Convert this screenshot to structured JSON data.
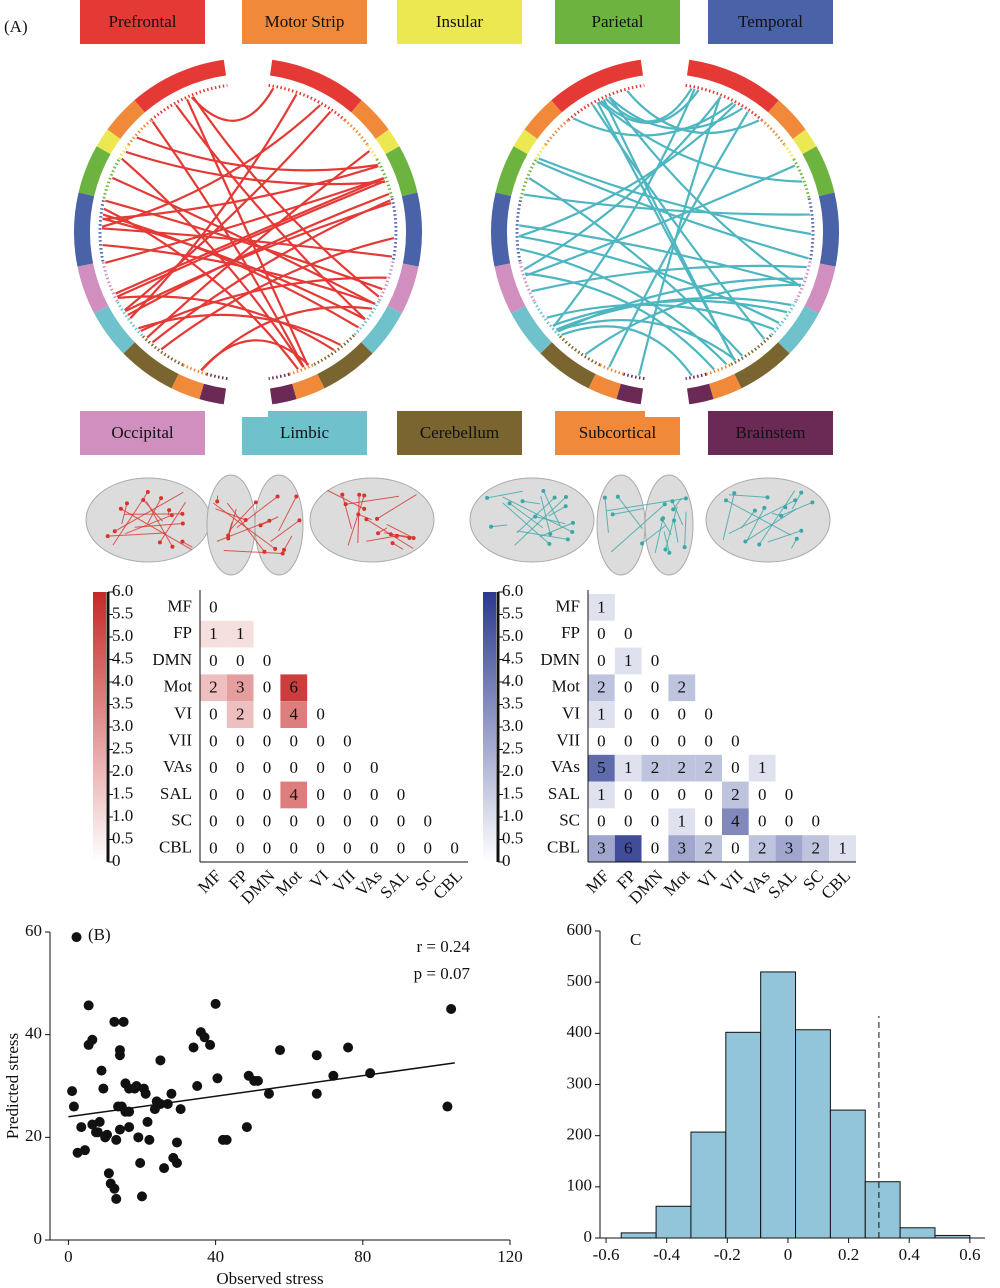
{
  "panel_a": {
    "label": "(A)",
    "regions": [
      {
        "name": "Prefrontal",
        "color": "#e53935"
      },
      {
        "name": "Motor Strip",
        "color": "#f08a3a"
      },
      {
        "name": "Insular",
        "color": "#ece852"
      },
      {
        "name": "Parietal",
        "color": "#6db33f"
      },
      {
        "name": "Temporal",
        "color": "#4a62a8"
      },
      {
        "name": "Occipital",
        "color": "#d08fbf"
      },
      {
        "name": "Limbic",
        "color": "#6fc2cc"
      },
      {
        "name": "Cerebellum",
        "color": "#7a6530"
      },
      {
        "name": "Subcortical",
        "color": "#f08a3a"
      },
      {
        "name": "Brainstem",
        "color": "#6b2a56"
      }
    ]
  },
  "chart_data": [
    {
      "type": "heatmap",
      "categories": [
        "MF",
        "FP",
        "DMN",
        "Mot",
        "VI",
        "VII",
        "VAs",
        "SAL",
        "SC",
        "CBL"
      ],
      "values": [
        [
          0,
          null,
          null,
          null,
          null,
          null,
          null,
          null,
          null,
          null
        ],
        [
          1,
          1,
          null,
          null,
          null,
          null,
          null,
          null,
          null,
          null
        ],
        [
          0,
          0,
          0,
          null,
          null,
          null,
          null,
          null,
          null,
          null
        ],
        [
          2,
          3,
          0,
          6,
          null,
          null,
          null,
          null,
          null,
          null
        ],
        [
          0,
          2,
          0,
          4,
          0,
          null,
          null,
          null,
          null,
          null
        ],
        [
          0,
          0,
          0,
          0,
          0,
          0,
          null,
          null,
          null,
          null
        ],
        [
          0,
          0,
          0,
          0,
          0,
          0,
          0,
          null,
          null,
          null
        ],
        [
          0,
          0,
          0,
          4,
          0,
          0,
          0,
          0,
          null,
          null
        ],
        [
          0,
          0,
          0,
          0,
          0,
          0,
          0,
          0,
          0,
          null
        ],
        [
          0,
          0,
          0,
          0,
          0,
          0,
          0,
          0,
          0,
          0
        ]
      ],
      "color": "#c62828",
      "zlim": [
        0,
        6
      ],
      "zticks": [
        0,
        0.5,
        {
          "value": 1,
          "label": "1.0"
        },
        1.5,
        {
          "value": 2,
          "label": "2.0"
        },
        2.5,
        {
          "value": 3,
          "label": "3.0"
        },
        3.5,
        {
          "value": 4,
          "label": "4.0"
        },
        4.5,
        {
          "value": 5,
          "label": "5.0"
        },
        5.5,
        {
          "value": 6,
          "label": "6.0"
        }
      ]
    },
    {
      "type": "heatmap",
      "categories": [
        "MF",
        "FP",
        "DMN",
        "Mot",
        "VI",
        "VII",
        "VAs",
        "SAL",
        "SC",
        "CBL"
      ],
      "values": [
        [
          1,
          null,
          null,
          null,
          null,
          null,
          null,
          null,
          null,
          null
        ],
        [
          0,
          0,
          null,
          null,
          null,
          null,
          null,
          null,
          null,
          null
        ],
        [
          0,
          1,
          0,
          null,
          null,
          null,
          null,
          null,
          null,
          null
        ],
        [
          2,
          0,
          0,
          2,
          null,
          null,
          null,
          null,
          null,
          null
        ],
        [
          1,
          0,
          0,
          0,
          0,
          null,
          null,
          null,
          null,
          null
        ],
        [
          0,
          0,
          0,
          0,
          0,
          0,
          null,
          null,
          null,
          null
        ],
        [
          5,
          1,
          2,
          2,
          2,
          0,
          1,
          null,
          null,
          null
        ],
        [
          1,
          0,
          0,
          0,
          0,
          2,
          0,
          0,
          null,
          null
        ],
        [
          0,
          0,
          0,
          1,
          0,
          4,
          0,
          0,
          0,
          null
        ],
        [
          3,
          6,
          0,
          3,
          2,
          0,
          2,
          3,
          2,
          1
        ]
      ],
      "color": "#2b3990",
      "zlim": [
        0,
        6
      ],
      "zticks": [
        0,
        0.5,
        {
          "value": 1,
          "label": "1.0"
        },
        1.5,
        {
          "value": 2,
          "label": "2.0"
        },
        2.5,
        {
          "value": 3,
          "label": "3.0"
        },
        3.5,
        {
          "value": 4,
          "label": "4.0"
        },
        4.5,
        {
          "value": 5,
          "label": "5.0"
        },
        5.5,
        {
          "value": 6,
          "label": "6.0"
        }
      ]
    },
    {
      "type": "scatter",
      "label": "(B)",
      "x_label": "Observed stress",
      "y_label": "Predicted stress",
      "x": [
        2.2,
        1,
        1.5,
        2.5,
        3.5,
        5.5,
        5.5,
        6.5,
        4.5,
        6.5,
        7.5,
        8,
        8.5,
        9,
        9.5,
        10,
        10.5,
        11,
        11.5,
        12.5,
        13,
        12.5,
        15,
        13.5,
        13,
        14,
        14,
        14,
        14.5,
        15.5,
        16.5,
        15.5,
        16.5,
        16.5,
        18,
        18.5,
        19,
        19.5,
        20,
        20.5,
        21,
        22,
        21.5,
        23.5,
        24,
        25,
        25,
        26,
        27,
        28,
        28.5,
        29.5,
        29.5,
        30.5,
        34,
        35,
        36,
        37,
        38.5,
        40,
        40.5,
        42,
        43,
        48.5,
        49,
        50.5,
        51.5,
        54.5,
        57.5,
        67.5,
        67.5,
        72,
        76,
        82,
        103,
        104
      ],
      "y": [
        59,
        29,
        26,
        17,
        22,
        38,
        45.7,
        39,
        17.5,
        22.5,
        21,
        21,
        23,
        33,
        29.5,
        20,
        20.5,
        13,
        11,
        10,
        8,
        42.5,
        42.5,
        26,
        19.5,
        21.5,
        36,
        37,
        26,
        30.5,
        29.5,
        25,
        25,
        22,
        29.5,
        30,
        20,
        15,
        8.5,
        29.5,
        28.5,
        19.5,
        23,
        25.5,
        27,
        26.5,
        35,
        14,
        26.5,
        28.5,
        16,
        19,
        15,
        25.5,
        37.5,
        30,
        40.5,
        39.5,
        38,
        46,
        31.5,
        19.5,
        19.5,
        22,
        32,
        31,
        31,
        28.5,
        37,
        36,
        28.5,
        32,
        37.5,
        32.5,
        26,
        45
      ],
      "color": "#111111",
      "fit": {
        "x": [
          0,
          105
        ],
        "y": [
          24,
          34.5
        ]
      },
      "annotations": [
        "r = 0.24",
        "p = 0.07"
      ],
      "xlim": [
        -5,
        120
      ],
      "ylim": [
        0,
        60
      ],
      "xticks": [
        0,
        40,
        80,
        120
      ],
      "yticks": [
        0,
        20,
        40,
        60
      ]
    },
    {
      "type": "histogram",
      "label": "C",
      "bins": [
        -0.55,
        -0.435,
        -0.32,
        -0.205,
        -0.09,
        0.025,
        0.14,
        0.255,
        0.37,
        0.485,
        0.6
      ],
      "counts": [
        10,
        62,
        207,
        402,
        520,
        407,
        250,
        110,
        20,
        5
      ],
      "color": "#92c5d9",
      "reference_line": 0.3,
      "xlim": [
        -0.62,
        0.65
      ],
      "ylim": [
        0,
        600
      ],
      "xticks": [
        -0.6,
        -0.4,
        -0.2,
        0,
        0.2,
        0.4,
        0.6
      ],
      "yticks": [
        0,
        100,
        200,
        300,
        400,
        500,
        600
      ]
    }
  ]
}
